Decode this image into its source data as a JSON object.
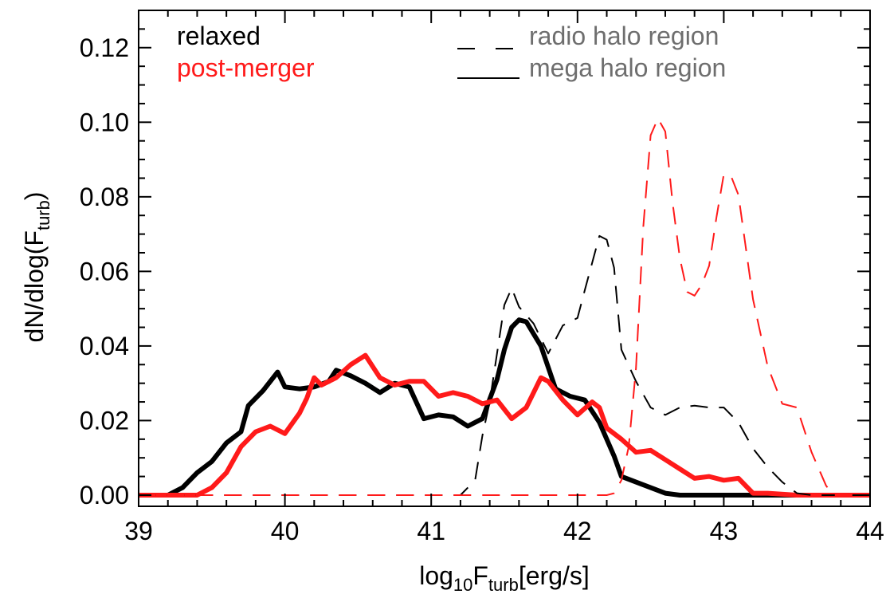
{
  "chart_data": {
    "type": "line",
    "xlabel": {
      "base": "log",
      "sub1": "10",
      "mid": "F",
      "sub2": "turb",
      "tail": "[erg/s]"
    },
    "ylabel": {
      "head": "dN/dlog(F",
      "sub": "turb",
      "tail": ")"
    },
    "xlim": [
      39,
      44
    ],
    "ylim": [
      -0.003,
      0.13
    ],
    "xticks": [
      {
        "v": 39,
        "label": "39"
      },
      {
        "v": 40,
        "label": "40"
      },
      {
        "v": 41,
        "label": "41"
      },
      {
        "v": 42,
        "label": "42"
      },
      {
        "v": 43,
        "label": "43"
      },
      {
        "v": 44,
        "label": "44"
      }
    ],
    "yticks": [
      {
        "v": 0.0,
        "label": "0.00"
      },
      {
        "v": 0.02,
        "label": "0.02"
      },
      {
        "v": 0.04,
        "label": "0.04"
      },
      {
        "v": 0.06,
        "label": "0.06"
      },
      {
        "v": 0.08,
        "label": "0.08"
      },
      {
        "v": 0.1,
        "label": "0.10"
      },
      {
        "v": 0.12,
        "label": "0.12"
      }
    ],
    "legend_color": [
      {
        "label": "relaxed",
        "color": "#000000"
      },
      {
        "label": "post-merger",
        "color": "#ff1a1a"
      }
    ],
    "legend_style": [
      {
        "label": "radio halo region",
        "dash": "dashed"
      },
      {
        "label": "mega halo region",
        "dash": "solid"
      }
    ],
    "legend_style_color": "#6e6e6e",
    "series": [
      {
        "name": "relaxed",
        "region": "mega halo region",
        "color": "#000000",
        "dash": "solid",
        "width": 6,
        "points": [
          [
            38.8,
            0
          ],
          [
            39.2,
            0
          ],
          [
            39.3,
            0.002
          ],
          [
            39.4,
            0.006
          ],
          [
            39.5,
            0.009
          ],
          [
            39.6,
            0.014
          ],
          [
            39.7,
            0.017
          ],
          [
            39.75,
            0.024
          ],
          [
            39.85,
            0.028
          ],
          [
            39.95,
            0.033
          ],
          [
            40.0,
            0.029
          ],
          [
            40.1,
            0.0285
          ],
          [
            40.2,
            0.029
          ],
          [
            40.3,
            0.0305
          ],
          [
            40.35,
            0.0335
          ],
          [
            40.45,
            0.032
          ],
          [
            40.55,
            0.03
          ],
          [
            40.65,
            0.0275
          ],
          [
            40.75,
            0.03
          ],
          [
            40.85,
            0.029
          ],
          [
            40.95,
            0.0205
          ],
          [
            41.05,
            0.0215
          ],
          [
            41.15,
            0.021
          ],
          [
            41.25,
            0.0185
          ],
          [
            41.35,
            0.0205
          ],
          [
            41.45,
            0.031
          ],
          [
            41.5,
            0.039
          ],
          [
            41.55,
            0.045
          ],
          [
            41.6,
            0.047
          ],
          [
            41.65,
            0.0465
          ],
          [
            41.75,
            0.04
          ],
          [
            41.85,
            0.0285
          ],
          [
            41.95,
            0.0265
          ],
          [
            42.05,
            0.0255
          ],
          [
            42.15,
            0.0195
          ],
          [
            42.25,
            0.0105
          ],
          [
            42.3,
            0.005
          ],
          [
            42.4,
            0.0035
          ],
          [
            42.5,
            0.002
          ],
          [
            42.6,
            0.0005
          ],
          [
            42.7,
            0
          ],
          [
            42.8,
            0
          ],
          [
            42.9,
            0
          ],
          [
            43.0,
            0
          ],
          [
            44.2,
            0
          ]
        ]
      },
      {
        "name": "post-merger",
        "region": "mega halo region",
        "color": "#ff1a1a",
        "dash": "solid",
        "width": 6,
        "points": [
          [
            38.8,
            0
          ],
          [
            39.4,
            0
          ],
          [
            39.5,
            0.002
          ],
          [
            39.6,
            0.006
          ],
          [
            39.7,
            0.013
          ],
          [
            39.8,
            0.017
          ],
          [
            39.9,
            0.0185
          ],
          [
            40.0,
            0.0165
          ],
          [
            40.1,
            0.022
          ],
          [
            40.15,
            0.026
          ],
          [
            40.2,
            0.0315
          ],
          [
            40.25,
            0.0295
          ],
          [
            40.35,
            0.0315
          ],
          [
            40.45,
            0.035
          ],
          [
            40.55,
            0.0375
          ],
          [
            40.65,
            0.0315
          ],
          [
            40.75,
            0.0295
          ],
          [
            40.85,
            0.0305
          ],
          [
            40.95,
            0.0305
          ],
          [
            41.05,
            0.0265
          ],
          [
            41.15,
            0.0275
          ],
          [
            41.25,
            0.0265
          ],
          [
            41.35,
            0.0245
          ],
          [
            41.45,
            0.0255
          ],
          [
            41.55,
            0.0205
          ],
          [
            41.65,
            0.0235
          ],
          [
            41.7,
            0.0275
          ],
          [
            41.75,
            0.0315
          ],
          [
            41.8,
            0.0305
          ],
          [
            41.9,
            0.0255
          ],
          [
            42.0,
            0.0215
          ],
          [
            42.1,
            0.025
          ],
          [
            42.15,
            0.0235
          ],
          [
            42.2,
            0.018
          ],
          [
            42.3,
            0.015
          ],
          [
            42.4,
            0.0115
          ],
          [
            42.5,
            0.012
          ],
          [
            42.6,
            0.0095
          ],
          [
            42.7,
            0.007
          ],
          [
            42.8,
            0.0045
          ],
          [
            42.9,
            0.005
          ],
          [
            43.0,
            0.004
          ],
          [
            43.1,
            0.0045
          ],
          [
            43.2,
            0.0005
          ],
          [
            43.3,
            0.0005
          ],
          [
            43.5,
            0
          ],
          [
            44.2,
            0
          ]
        ]
      },
      {
        "name": "relaxed",
        "region": "radio halo region",
        "color": "#000000",
        "dash": "dashed",
        "width": 2,
        "points": [
          [
            38.8,
            0
          ],
          [
            41.05,
            0
          ],
          [
            41.2,
            0
          ],
          [
            41.3,
            0.004
          ],
          [
            41.35,
            0.016
          ],
          [
            41.4,
            0.025
          ],
          [
            41.5,
            0.051
          ],
          [
            41.55,
            0.0555
          ],
          [
            41.6,
            0.0505
          ],
          [
            41.7,
            0.046
          ],
          [
            41.8,
            0.038
          ],
          [
            41.9,
            0.0455
          ],
          [
            42.0,
            0.0475
          ],
          [
            42.05,
            0.055
          ],
          [
            42.15,
            0.0695
          ],
          [
            42.2,
            0.0685
          ],
          [
            42.25,
            0.061
          ],
          [
            42.3,
            0.039
          ],
          [
            42.4,
            0.0305
          ],
          [
            42.5,
            0.0235
          ],
          [
            42.6,
            0.0215
          ],
          [
            42.7,
            0.0235
          ],
          [
            42.8,
            0.024
          ],
          [
            42.9,
            0.0235
          ],
          [
            43.0,
            0.0235
          ],
          [
            43.1,
            0.0195
          ],
          [
            43.2,
            0.0125
          ],
          [
            43.3,
            0.0075
          ],
          [
            43.4,
            0.0035
          ],
          [
            43.5,
            0.0005
          ],
          [
            43.6,
            0
          ],
          [
            44.2,
            0
          ]
        ]
      },
      {
        "name": "post-merger",
        "region": "radio halo region",
        "color": "#ff1a1a",
        "dash": "dashed",
        "width": 2,
        "points": [
          [
            38.8,
            0
          ],
          [
            42.2,
            0
          ],
          [
            42.25,
            0.0005
          ],
          [
            42.3,
            0.004
          ],
          [
            42.35,
            0.013
          ],
          [
            42.4,
            0.034
          ],
          [
            42.45,
            0.072
          ],
          [
            42.5,
            0.0965
          ],
          [
            42.55,
            0.101
          ],
          [
            42.6,
            0.0975
          ],
          [
            42.65,
            0.0785
          ],
          [
            42.7,
            0.0635
          ],
          [
            42.75,
            0.0545
          ],
          [
            42.8,
            0.0535
          ],
          [
            42.85,
            0.0565
          ],
          [
            42.9,
            0.0615
          ],
          [
            42.95,
            0.0745
          ],
          [
            43.0,
            0.086
          ],
          [
            43.05,
            0.0855
          ],
          [
            43.1,
            0.0805
          ],
          [
            43.2,
            0.0525
          ],
          [
            43.3,
            0.0345
          ],
          [
            43.4,
            0.0245
          ],
          [
            43.5,
            0.0235
          ],
          [
            43.6,
            0.0115
          ],
          [
            43.7,
            0.0025
          ],
          [
            43.75,
            0
          ],
          [
            44.2,
            0
          ]
        ]
      }
    ]
  }
}
